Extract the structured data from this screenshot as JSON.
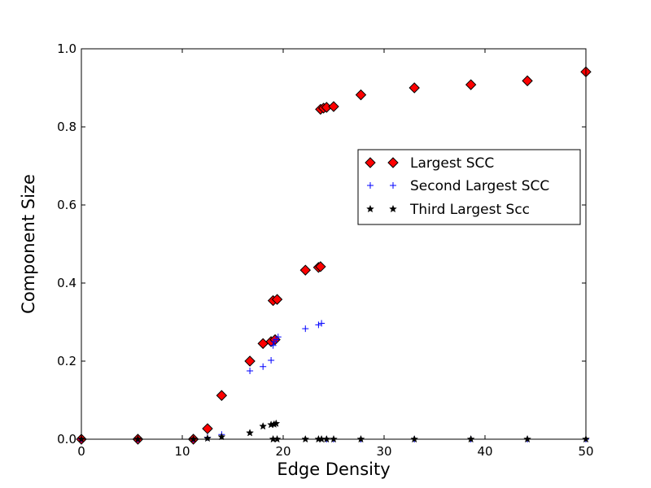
{
  "chart_data": {
    "type": "scatter",
    "title": "",
    "xlabel": "Edge Density",
    "ylabel": "Component Size",
    "xlim": [
      0,
      50
    ],
    "ylim": [
      0.0,
      1.0
    ],
    "xticks": [
      "0",
      "10",
      "20",
      "30",
      "40",
      "50"
    ],
    "yticks": [
      "0.0",
      "0.2",
      "0.4",
      "0.6",
      "0.8",
      "1.0"
    ],
    "grid": false,
    "legend_position": "center-right",
    "series": [
      {
        "name": "Largest SCC",
        "marker": "diamond",
        "color": "#ff0000",
        "edge_color": "#000000",
        "points": [
          [
            0.0,
            0.0
          ],
          [
            5.6,
            0.0
          ],
          [
            11.1,
            0.0
          ],
          [
            12.5,
            0.027
          ],
          [
            13.9,
            0.112
          ],
          [
            16.7,
            0.2
          ],
          [
            18.0,
            0.245
          ],
          [
            18.8,
            0.25
          ],
          [
            19.0,
            0.355
          ],
          [
            19.2,
            0.255
          ],
          [
            19.4,
            0.358
          ],
          [
            22.2,
            0.433
          ],
          [
            23.5,
            0.44
          ],
          [
            23.7,
            0.442
          ],
          [
            23.7,
            0.845
          ],
          [
            24.0,
            0.848
          ],
          [
            24.3,
            0.85
          ],
          [
            25.0,
            0.852
          ],
          [
            27.7,
            0.882
          ],
          [
            33.0,
            0.9
          ],
          [
            38.6,
            0.908
          ],
          [
            44.2,
            0.918
          ],
          [
            50.0,
            0.941
          ]
        ]
      },
      {
        "name": "Second Largest SCC",
        "marker": "plus",
        "color": "#0000ff",
        "points": [
          [
            0.0,
            0.0
          ],
          [
            5.6,
            0.0
          ],
          [
            11.1,
            0.0
          ],
          [
            12.5,
            0.005
          ],
          [
            13.9,
            0.012
          ],
          [
            16.7,
            0.175
          ],
          [
            18.0,
            0.186
          ],
          [
            18.8,
            0.202
          ],
          [
            19.0,
            0.24
          ],
          [
            19.1,
            0.25
          ],
          [
            19.3,
            0.255
          ],
          [
            19.5,
            0.262
          ],
          [
            22.2,
            0.283
          ],
          [
            23.5,
            0.293
          ],
          [
            23.8,
            0.297
          ],
          [
            24.3,
            0.0
          ],
          [
            25.0,
            0.0
          ],
          [
            27.7,
            0.0
          ],
          [
            33.0,
            0.0
          ],
          [
            38.6,
            0.0
          ],
          [
            44.2,
            0.0
          ],
          [
            50.0,
            0.0
          ]
        ]
      },
      {
        "name": "Third Largest Scc",
        "marker": "star",
        "color": "#000000",
        "points": [
          [
            0.0,
            0.0
          ],
          [
            5.6,
            0.0
          ],
          [
            11.1,
            0.0
          ],
          [
            12.5,
            0.002
          ],
          [
            13.9,
            0.006
          ],
          [
            16.7,
            0.016
          ],
          [
            18.0,
            0.033
          ],
          [
            18.8,
            0.037
          ],
          [
            19.1,
            0.038
          ],
          [
            19.3,
            0.04
          ],
          [
            19.0,
            0.0
          ],
          [
            19.4,
            0.0
          ],
          [
            22.2,
            0.0
          ],
          [
            23.5,
            0.0
          ],
          [
            23.8,
            0.0
          ],
          [
            24.3,
            0.0
          ],
          [
            25.0,
            0.0
          ],
          [
            27.7,
            0.0
          ],
          [
            33.0,
            0.0
          ],
          [
            38.6,
            0.0
          ],
          [
            44.2,
            0.0
          ],
          [
            50.0,
            0.0
          ]
        ]
      }
    ]
  }
}
